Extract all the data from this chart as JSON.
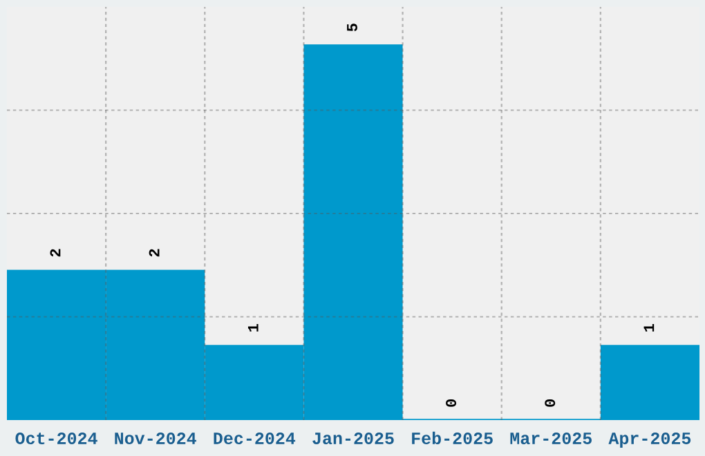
{
  "chart_data": {
    "type": "bar",
    "categories": [
      "Oct-2024",
      "Nov-2024",
      "Dec-2024",
      "Jan-2025",
      "Feb-2025",
      "Mar-2025",
      "Apr-2025"
    ],
    "values": [
      2,
      2,
      1,
      5,
      0,
      0,
      1
    ],
    "color": "#0099cc",
    "ylim": [
      0,
      5.5
    ],
    "yticks": [
      {
        "value": 1.375,
        "label": null
      },
      {
        "value": 2.75,
        "label": null
      },
      {
        "value": 4.125,
        "label": null
      }
    ],
    "tick_labels": "x",
    "grid": true,
    "data_labels": true
  }
}
